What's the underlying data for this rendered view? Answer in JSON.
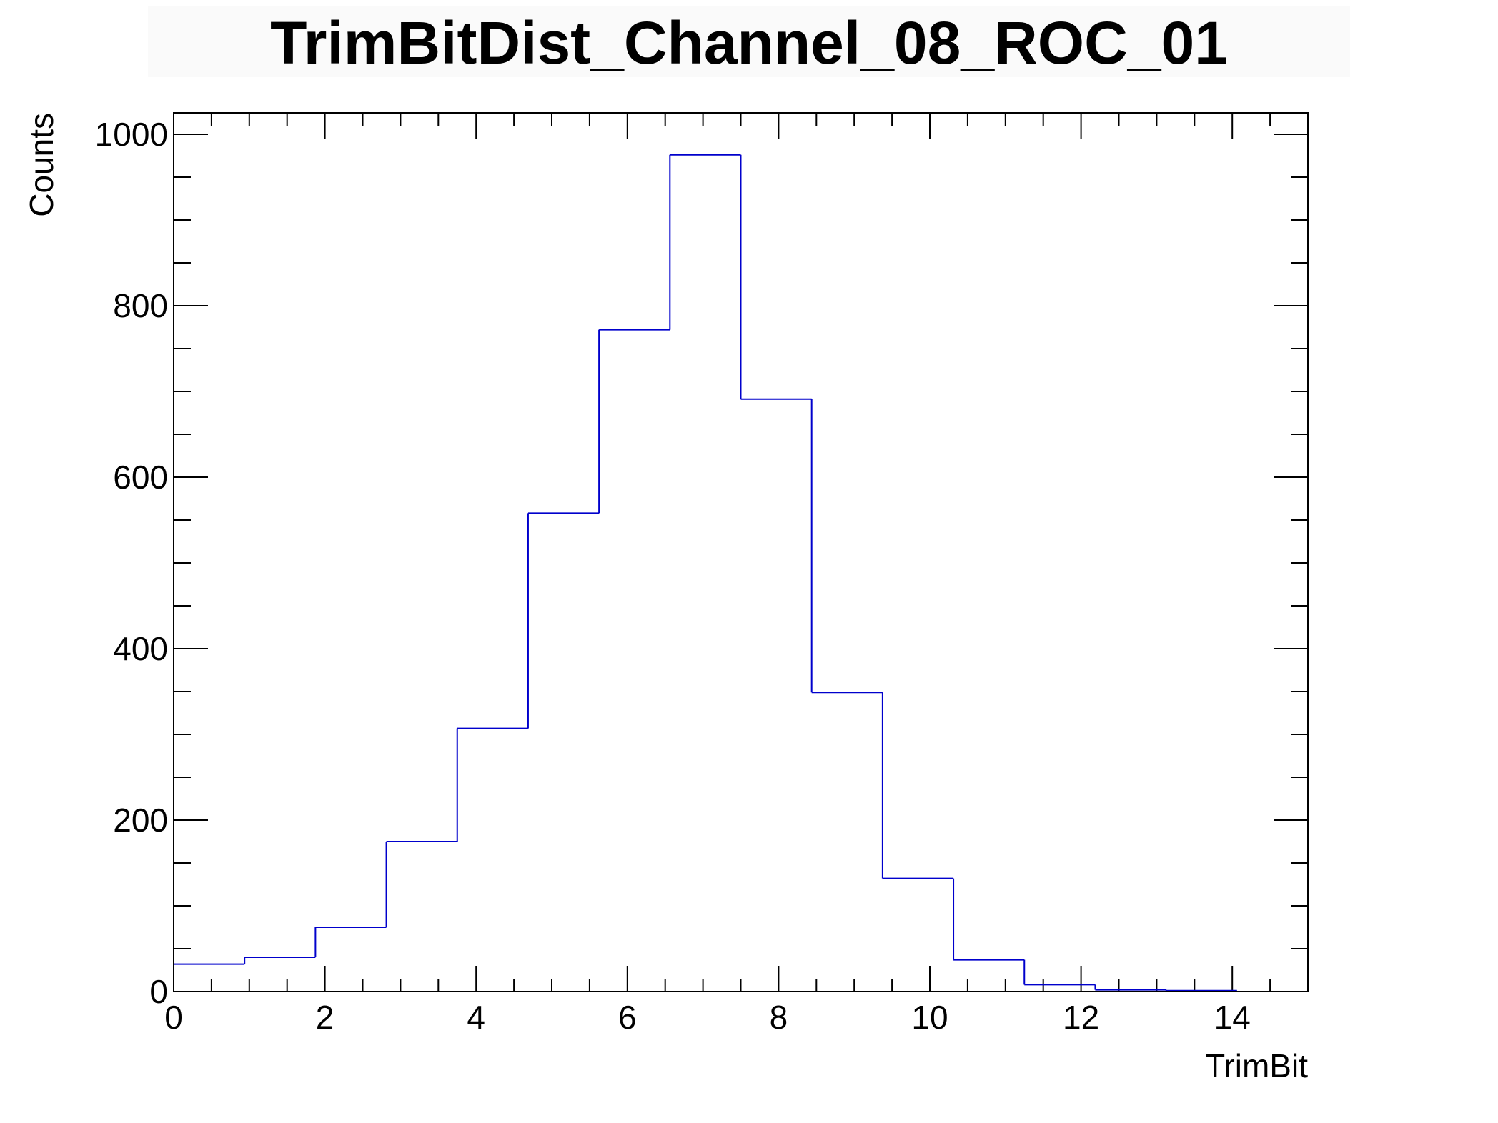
{
  "chart_data": {
    "type": "histogram",
    "title": "TrimBitDist_Channel_08_ROC_01",
    "xlabel": "TrimBit",
    "ylabel": "Counts",
    "xlim": [
      0,
      15
    ],
    "ylim": [
      0,
      1025
    ],
    "x_ticks": [
      0,
      2,
      4,
      6,
      8,
      10,
      12,
      14
    ],
    "y_ticks": [
      0,
      200,
      400,
      600,
      800,
      1000
    ],
    "bin_edges": [
      0,
      0.9375,
      1.875,
      2.8125,
      3.75,
      4.6875,
      5.625,
      6.5625,
      7.5,
      8.4375,
      9.375,
      10.3125,
      11.25,
      12.1875,
      13.125,
      14.0625
    ],
    "values": [
      32,
      40,
      75,
      175,
      307,
      558,
      772,
      976,
      691,
      349,
      132,
      37,
      8,
      2,
      1
    ],
    "grid": false,
    "line_color": "#0000cc"
  }
}
